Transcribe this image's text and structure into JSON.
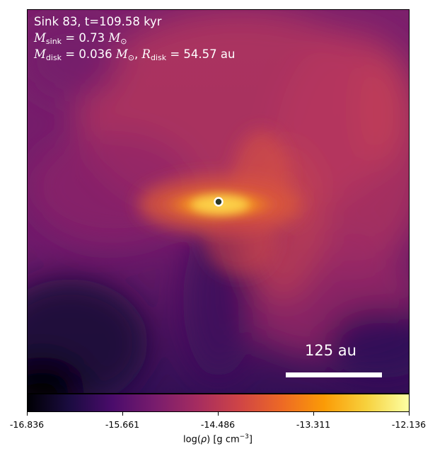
{
  "panel": {
    "line1": "Sink 83, t=109.58 kyr",
    "m_sink_value": "0.73",
    "m_disk_value": "0.036",
    "r_disk_value": "54.57",
    "unit_au": "au",
    "sym_m": "M",
    "sym_r": "R",
    "sub_sink": "sink",
    "sub_disk": "disk",
    "sun_symbol": "⊙"
  },
  "scale_bar": {
    "label": "125 au"
  },
  "colorbar": {
    "ticks": [
      "-16.836",
      "-15.661",
      "-14.486",
      "-13.311",
      "-12.136"
    ],
    "label_prefix": "log(",
    "label_rho": "ρ",
    "label_mid": ") [g cm",
    "label_exp": "−3",
    "label_suffix": "]",
    "colormap": "inferno"
  },
  "sink_marker": {
    "stroke": "#ffffff",
    "fill": "#2d3a26",
    "inner": "#1a1a1a"
  }
}
